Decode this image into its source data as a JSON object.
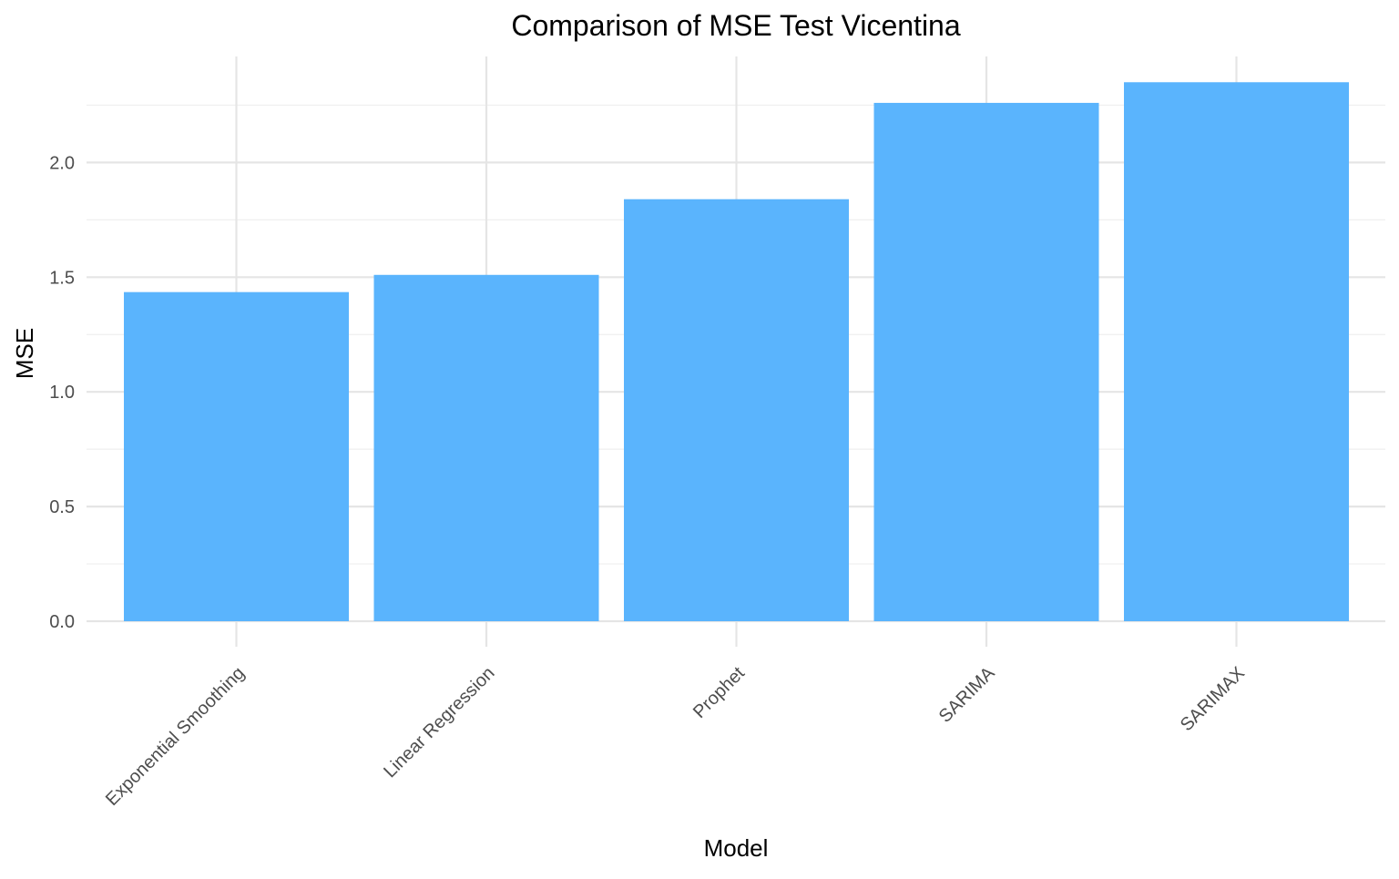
{
  "chart_data": {
    "type": "bar",
    "title": "Comparison of MSE Test Vicentina",
    "xlabel": "Model",
    "ylabel": "MSE",
    "categories": [
      "Exponential Smoothing",
      "Linear Regression",
      "Prophet",
      "SARIMA",
      "SARIMAX"
    ],
    "values": [
      1.435,
      1.51,
      1.84,
      2.26,
      2.35
    ],
    "ylim": [
      0,
      2.47
    ],
    "yticks": [
      "0.0",
      "0.5",
      "1.0",
      "1.5",
      "2.0"
    ],
    "grid": true,
    "legend": "none",
    "bar_color": "#5AB4FD"
  }
}
